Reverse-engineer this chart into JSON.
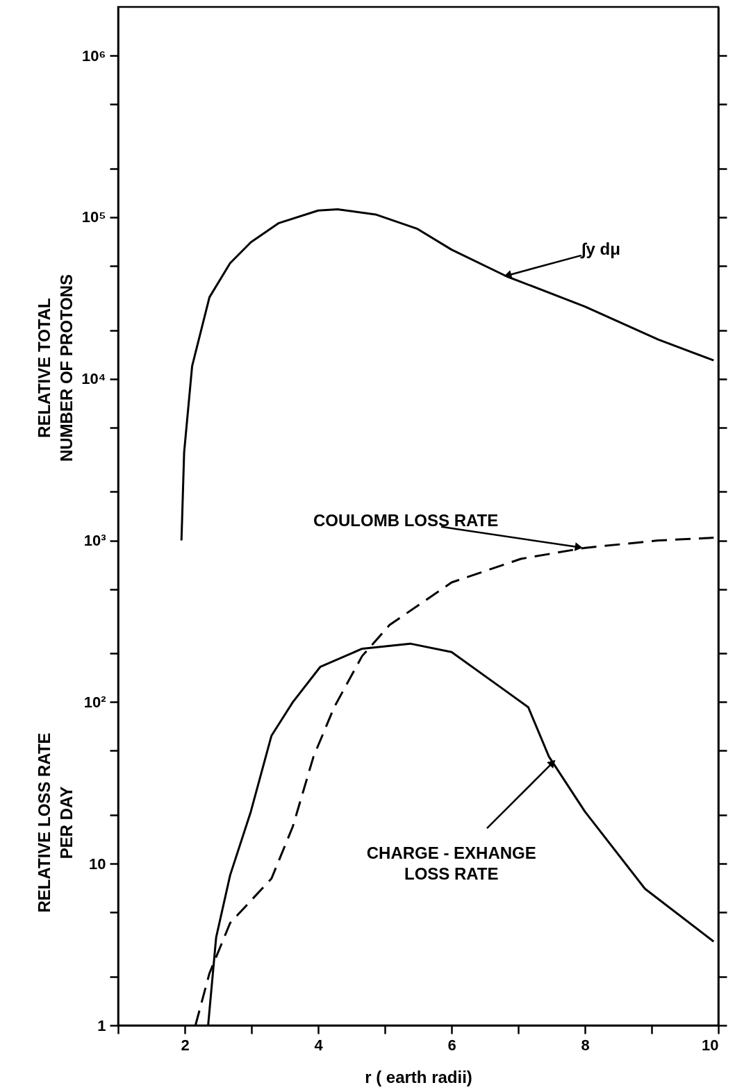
{
  "chart_data": {
    "type": "line",
    "xlabel": "r ( earth radii)",
    "ylabel": "RELATIVE TOTAL\nNUMBER OF PROTONS",
    "xlim": [
      1,
      10
    ],
    "xticks": [
      {
        "value": 1,
        "label": null
      },
      2,
      {
        "value": 3,
        "label": null
      },
      4,
      {
        "value": 5,
        "label": null
      },
      6,
      {
        "value": 7,
        "label": null
      },
      8,
      {
        "value": 9,
        "label": null
      },
      10
    ],
    "ylim": [
      1,
      2000000
    ],
    "yticks": [
      1,
      {
        "value": 2,
        "label": null
      },
      {
        "value": 5,
        "label": null
      },
      10,
      {
        "value": 20,
        "label": null
      },
      {
        "value": 50,
        "label": null
      },
      {
        "value": 100,
        "label": "10²"
      },
      {
        "value": 200,
        "label": null
      },
      {
        "value": 500,
        "label": null
      },
      {
        "value": 1000,
        "label": "10³"
      },
      {
        "value": 2000,
        "label": null
      },
      {
        "value": 5000,
        "label": null
      },
      {
        "value": 10000,
        "label": "10⁴"
      },
      {
        "value": 20000,
        "label": null
      },
      {
        "value": 50000,
        "label": null
      },
      {
        "value": 100000,
        "label": "10⁵"
      },
      {
        "value": 200000,
        "label": null
      },
      {
        "value": 500000,
        "label": null
      },
      {
        "value": 1000000,
        "label": "10⁶"
      }
    ],
    "log": true,
    "grid": false,
    "marker": "none",
    "series": [
      {
        "color": "#000000",
        "line_style": "solid",
        "x": [
          1.95,
          1.99,
          2.11,
          2.37,
          2.68,
          2.99,
          3.41,
          4.0,
          4.29,
          4.86,
          5.48,
          6.0,
          6.83,
          8.0,
          9.1,
          9.93
        ],
        "values": [
          1000,
          3500,
          12000,
          32000,
          52000,
          70000,
          92000,
          110000,
          112000,
          104000,
          85000,
          63000,
          43000,
          28000,
          17500,
          13000
        ]
      },
      {
        "color": "#000000",
        "line_style": "dashed",
        "x": [
          2.16,
          2.37,
          2.68,
          3.3,
          3.62,
          3.93,
          4.24,
          4.66,
          5.07,
          6.0,
          7.04,
          8.0,
          9.1,
          9.93
        ],
        "values": [
          1,
          2.1,
          4.3,
          8.1,
          17,
          46,
          93,
          193,
          300,
          550,
          770,
          900,
          1000,
          1040
        ]
      },
      {
        "color": "#000000",
        "line_style": "solid",
        "x": [
          2.35,
          2.47,
          2.68,
          2.99,
          3.3,
          3.62,
          4.03,
          4.66,
          5.38,
          6.0,
          6.73,
          7.15,
          7.46,
          8.0,
          8.9,
          9.93
        ],
        "values": [
          1,
          3.5,
          8.5,
          21,
          62,
          100,
          165,
          214,
          230,
          204,
          124,
          93,
          46,
          21,
          7,
          3.3
        ]
      }
    ],
    "annotations": [
      {
        "text": "∫y dμ",
        "x": 6.78,
        "y": 43000
      },
      {
        "text": "COULOMB LOSS RATE",
        "x": 7.97,
        "y": 900
      },
      {
        "text": "CHARGE - EXHANGE\nLOSS RATE",
        "x": 7.56,
        "y": 44
      },
      "RELATIVE LOSS RATE\nPER DAY"
    ]
  }
}
